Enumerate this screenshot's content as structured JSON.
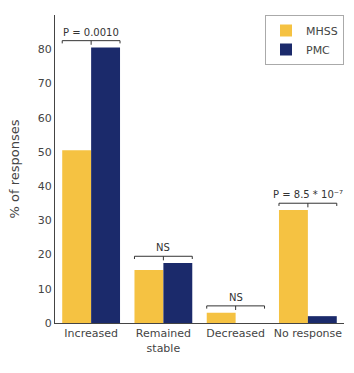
{
  "chart_data": {
    "type": "bar",
    "categories": [
      "Increased",
      "Remained\nstable",
      "Decreased",
      "No response"
    ],
    "series": [
      {
        "name": "MHSS",
        "color": "#F5C242",
        "values": [
          50.5,
          15.5,
          3.0,
          33.0
        ]
      },
      {
        "name": "PMC",
        "color": "#1B2A6B",
        "values": [
          80.5,
          17.5,
          0.0,
          2.0
        ]
      }
    ],
    "ylabel": "% of responses",
    "ylim": [
      0,
      90
    ],
    "yticks": [
      0,
      10,
      20,
      30,
      40,
      50,
      60,
      70,
      80
    ],
    "legend": "upper right",
    "grid": false,
    "annotations": [
      {
        "category": "Increased",
        "text": "P = 0.0010"
      },
      {
        "category": "Remained\nstable",
        "text": "NS"
      },
      {
        "category": "Decreased",
        "text": "NS"
      },
      {
        "category": "No response",
        "text": "P = 8.5 * 10⁻⁷"
      }
    ]
  }
}
